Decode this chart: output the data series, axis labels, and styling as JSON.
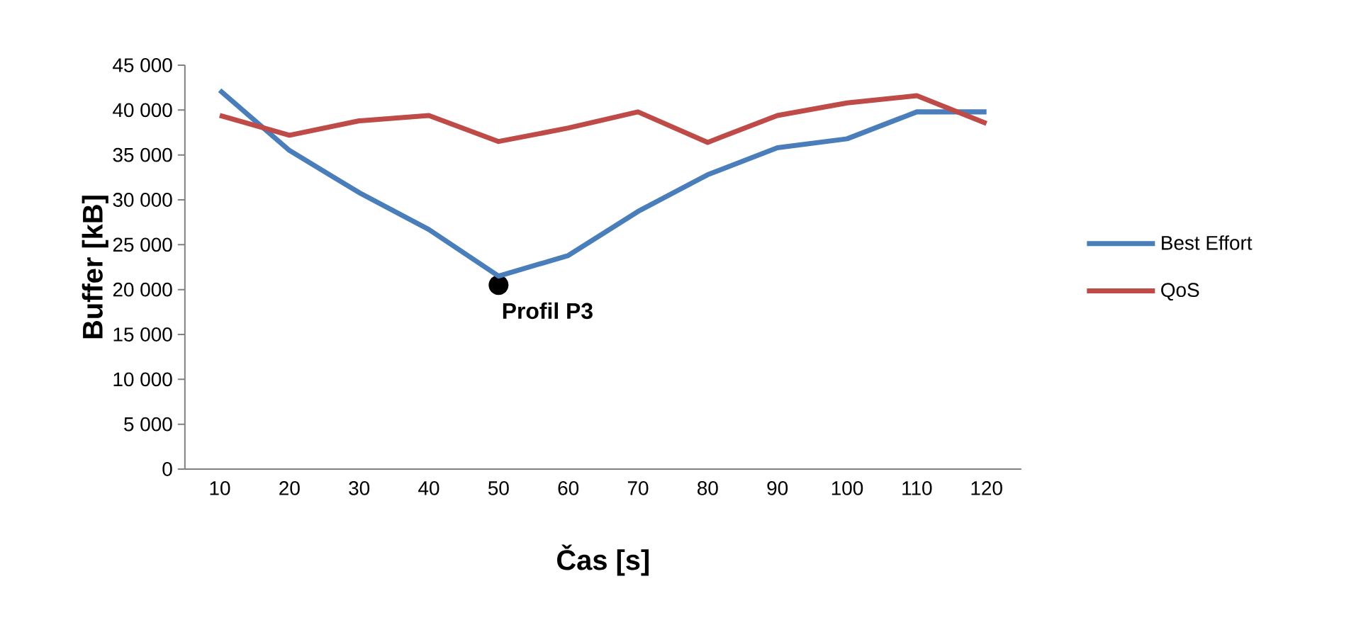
{
  "chart_data": {
    "type": "line",
    "xlabel": "Čas [s]",
    "ylabel": "Buffer [kB]",
    "categories": [
      "10",
      "20",
      "30",
      "40",
      "50",
      "60",
      "70",
      "80",
      "90",
      "100",
      "110",
      "120"
    ],
    "series": [
      {
        "name": "Best Effort",
        "color": "#4a7ebb",
        "values": [
          42200,
          35500,
          30800,
          26700,
          21500,
          23800,
          28700,
          32800,
          35800,
          36800,
          39800,
          39800
        ]
      },
      {
        "name": "QoS",
        "color": "#be4b48",
        "values": [
          39400,
          37200,
          38800,
          39400,
          36500,
          38000,
          39800,
          36400,
          39400,
          40800,
          41600,
          38500
        ]
      }
    ],
    "ylim": [
      0,
      45000
    ],
    "yticks": [
      0,
      {
        "value": 5000,
        "label": "5 000"
      },
      {
        "value": 10000,
        "label": "10 000"
      },
      {
        "value": 15000,
        "label": "15 000"
      },
      {
        "value": 20000,
        "label": "20 000"
      },
      {
        "value": 25000,
        "label": "25 000"
      },
      {
        "value": 30000,
        "label": "30 000"
      },
      {
        "value": 35000,
        "label": "35 000"
      },
      {
        "value": 40000,
        "label": "40 000"
      },
      {
        "value": 45000,
        "label": "45 000"
      }
    ],
    "annotations": [
      {
        "text": "Profil P3",
        "x": "50",
        "y": 20500
      }
    ],
    "legend": "right",
    "grid": false,
    "marker": "none",
    "line_style": "solid"
  }
}
